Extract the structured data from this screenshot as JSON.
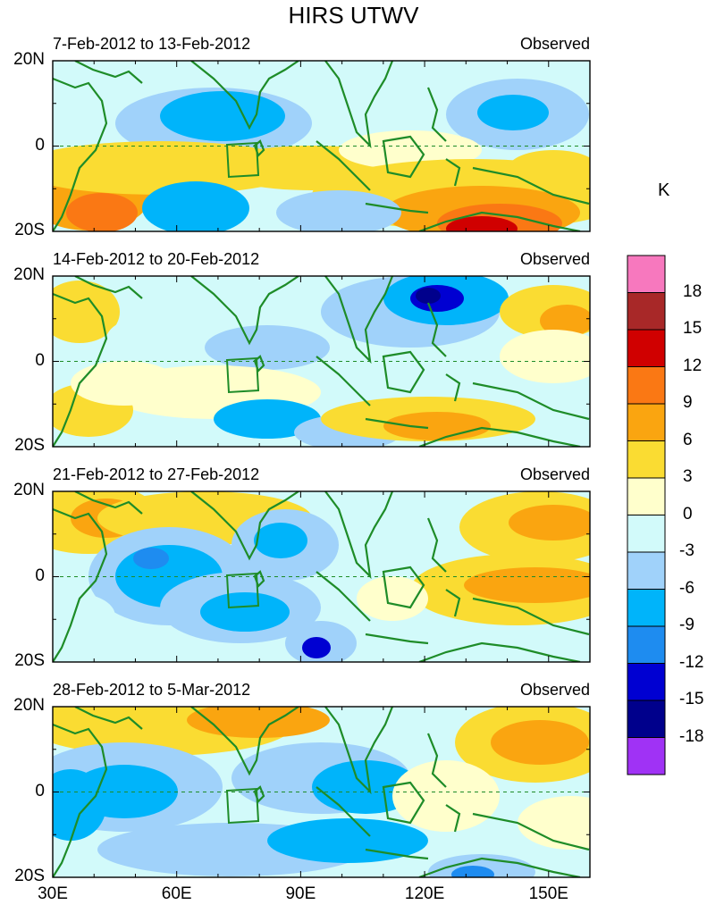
{
  "title": "HIRS UTWV",
  "unit": "K",
  "panels": [
    {
      "date_range": "7-Feb-2012 to 13-Feb-2012",
      "label": "Observed"
    },
    {
      "date_range": "14-Feb-2012 to 20-Feb-2012",
      "label": "Observed"
    },
    {
      "date_range": "21-Feb-2012 to 27-Feb-2012",
      "label": "Observed"
    },
    {
      "date_range": "28-Feb-2012 to 5-Mar-2012",
      "label": "Observed"
    }
  ],
  "lat_labels": [
    "20N",
    "0",
    "20S"
  ],
  "lon_labels": [
    "30E",
    "60E",
    "90E",
    "120E",
    "150E"
  ],
  "colorbar": {
    "labels": [
      "18",
      "15",
      "12",
      "9",
      "6",
      "3",
      "0",
      "-3",
      "-6",
      "-9",
      "-12",
      "-15",
      "-18"
    ],
    "colors": [
      "#f778be",
      "#a82828",
      "#d00000",
      "#fa7814",
      "#faa510",
      "#fadc32",
      "#ffffcc",
      "#d2fafa",
      "#a0d2fa",
      "#00b4fa",
      "#1e8cf0",
      "#0000d2",
      "#00008c",
      "#a032f5"
    ]
  },
  "colors": {
    "coast": "#1e8c28",
    "equator": "#1e8c28"
  }
}
